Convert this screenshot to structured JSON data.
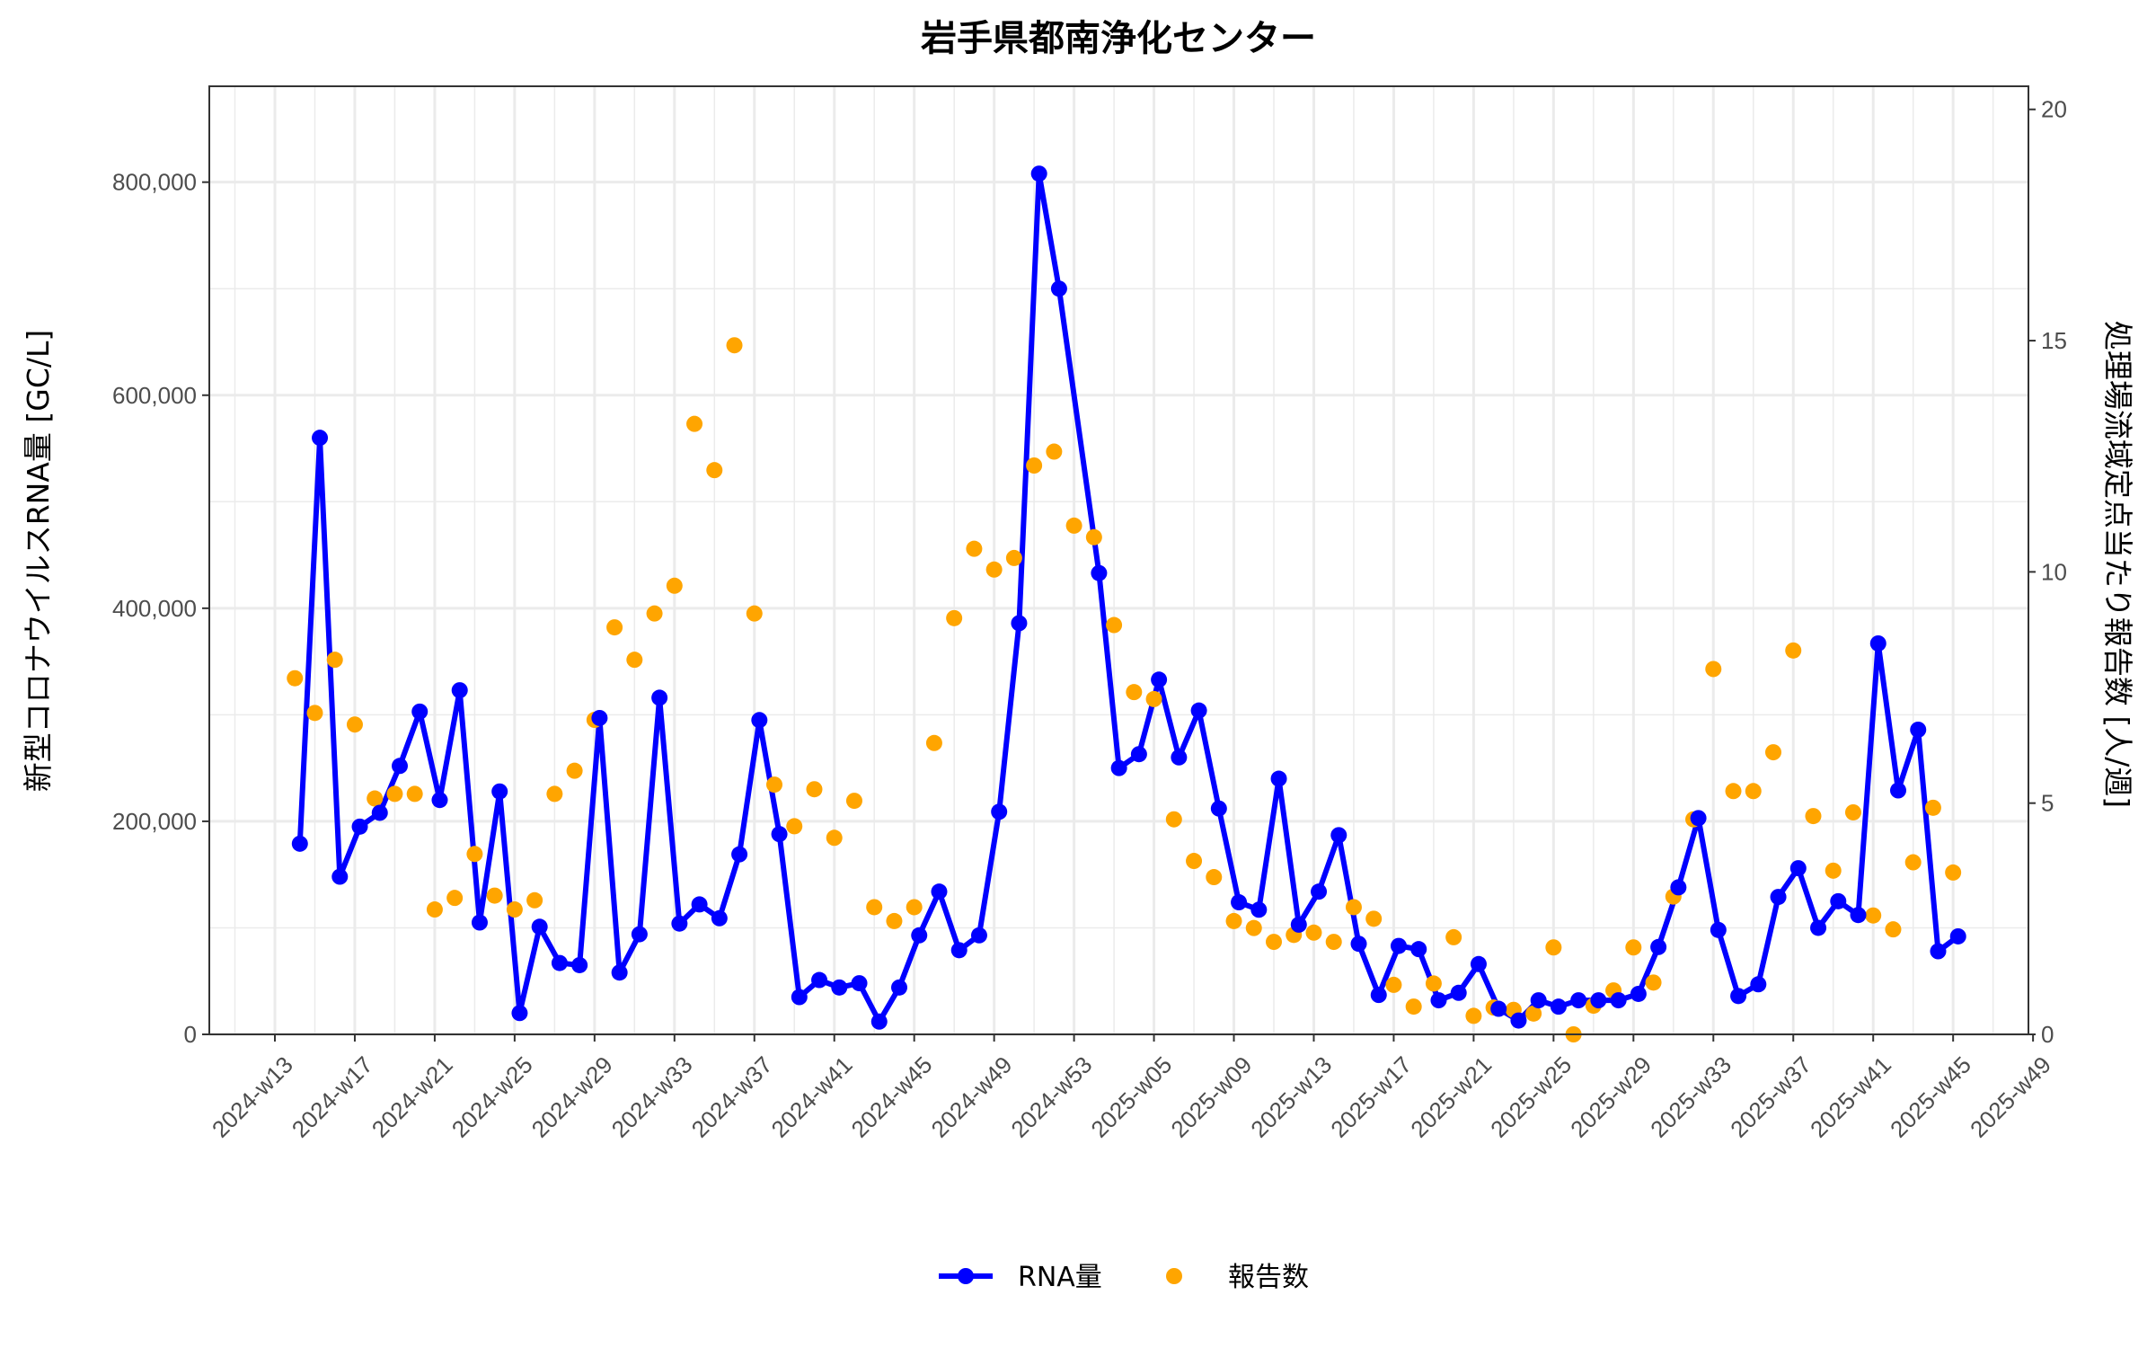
{
  "chart_data": {
    "type": "line",
    "title": "岩手県都南浄化センター",
    "xlabel": "",
    "ylabel_left": "新型コロナウイルスRNA量 [GC/L]",
    "ylabel_right": "処理場流域定点当たり報告数 [人/週]",
    "x_ticks": [
      "2024-w13",
      "2024-w17",
      "2024-w21",
      "2024-w25",
      "2024-w29",
      "2024-w33",
      "2024-w37",
      "2024-w41",
      "2024-w45",
      "2024-w49",
      "2024-w53",
      "2025-w05",
      "2025-w09",
      "2025-w13",
      "2025-w17",
      "2025-w21",
      "2025-w25",
      "2025-w29",
      "2025-w33",
      "2025-w37",
      "2025-w41",
      "2025-w45",
      "2025-w49"
    ],
    "y_left_ticks": [
      {
        "v": 0,
        "label": "0"
      },
      {
        "v": 200000,
        "label": "200,000"
      },
      {
        "v": 400000,
        "label": "400,000"
      },
      {
        "v": 600000,
        "label": "600,000"
      },
      {
        "v": 800000,
        "label": "800,000"
      }
    ],
    "y_right_ticks": [
      {
        "v": 0,
        "label": "0"
      },
      {
        "v": 5,
        "label": "5"
      },
      {
        "v": 10,
        "label": "10"
      },
      {
        "v": 15,
        "label": "15"
      },
      {
        "v": 20,
        "label": "20"
      }
    ],
    "ylim_left": [
      0,
      890000
    ],
    "ylim_right": [
      0,
      20.5
    ],
    "grid": true,
    "legend_position": "bottom",
    "series": [
      {
        "name": "RNA量",
        "type": "line+points",
        "axis": "left",
        "color": "#0000FF",
        "points": [
          [
            "2024-w14",
            179000
          ],
          [
            "2024-w15",
            560000
          ],
          [
            "2024-w16",
            148000
          ],
          [
            "2024-w17",
            195000
          ],
          [
            "2024-w18",
            208000
          ],
          [
            "2024-w19",
            252000
          ],
          [
            "2024-w20",
            303000
          ],
          [
            "2024-w21",
            220000
          ],
          [
            "2024-w22",
            323000
          ],
          [
            "2024-w23",
            105000
          ],
          [
            "2024-w24",
            228000
          ],
          [
            "2024-w25",
            20000
          ],
          [
            "2024-w26",
            101000
          ],
          [
            "2024-w27",
            67000
          ],
          [
            "2024-w28",
            65000
          ],
          [
            "2024-w29",
            297000
          ],
          [
            "2024-w30",
            58000
          ],
          [
            "2024-w31",
            94000
          ],
          [
            "2024-w32",
            316000
          ],
          [
            "2024-w33",
            104000
          ],
          [
            "2024-w34",
            122000
          ],
          [
            "2024-w35",
            109000
          ],
          [
            "2024-w36",
            169000
          ],
          [
            "2024-w37",
            295000
          ],
          [
            "2024-w38",
            188000
          ],
          [
            "2024-w39",
            35000
          ],
          [
            "2024-w40",
            51000
          ],
          [
            "2024-w41",
            44000
          ],
          [
            "2024-w42",
            48000
          ],
          [
            "2024-w43",
            12000
          ],
          [
            "2024-w44",
            44000
          ],
          [
            "2024-w45",
            93000
          ],
          [
            "2024-w46",
            134000
          ],
          [
            "2024-w47",
            79000
          ],
          [
            "2024-w48",
            93000
          ],
          [
            "2024-w49",
            209000
          ],
          [
            "2024-w50",
            386000
          ],
          [
            "2024-w51",
            808000
          ],
          [
            "2024-w52",
            700000
          ],
          [
            "2025-w02",
            433000
          ],
          [
            "2025-w03",
            250000
          ],
          [
            "2025-w04",
            263000
          ],
          [
            "2025-w05",
            333000
          ],
          [
            "2025-w06",
            260000
          ],
          [
            "2025-w07",
            304000
          ],
          [
            "2025-w08",
            212000
          ],
          [
            "2025-w09",
            124000
          ],
          [
            "2025-w10",
            117000
          ],
          [
            "2025-w11",
            240000
          ],
          [
            "2025-w12",
            103000
          ],
          [
            "2025-w13",
            134000
          ],
          [
            "2025-w14",
            187000
          ],
          [
            "2025-w15",
            85000
          ],
          [
            "2025-w16",
            37000
          ],
          [
            "2025-w17",
            83000
          ],
          [
            "2025-w18",
            80000
          ],
          [
            "2025-w19",
            32000
          ],
          [
            "2025-w20",
            39000
          ],
          [
            "2025-w21",
            66000
          ],
          [
            "2025-w22",
            24000
          ],
          [
            "2025-w23",
            13000
          ],
          [
            "2025-w24",
            32000
          ],
          [
            "2025-w25",
            26000
          ],
          [
            "2025-w26",
            32000
          ],
          [
            "2025-w27",
            32000
          ],
          [
            "2025-w28",
            32000
          ],
          [
            "2025-w29",
            38000
          ],
          [
            "2025-w30",
            82000
          ],
          [
            "2025-w31",
            138000
          ],
          [
            "2025-w32",
            203000
          ],
          [
            "2025-w33",
            98000
          ],
          [
            "2025-w34",
            36000
          ],
          [
            "2025-w35",
            47000
          ],
          [
            "2025-w36",
            129000
          ],
          [
            "2025-w37",
            156000
          ],
          [
            "2025-w38",
            100000
          ],
          [
            "2025-w39",
            125000
          ],
          [
            "2025-w40",
            112000
          ],
          [
            "2025-w41",
            367000
          ],
          [
            "2025-w42",
            229000
          ],
          [
            "2025-w43",
            286000
          ],
          [
            "2025-w44",
            78000
          ],
          [
            "2025-w45",
            92000
          ]
        ]
      },
      {
        "name": "報告数",
        "type": "scatter",
        "axis": "right",
        "color": "#FFA500",
        "points": [
          [
            "2024-w14",
            7.7
          ],
          [
            "2024-w15",
            6.95
          ],
          [
            "2024-w16",
            8.1
          ],
          [
            "2024-w17",
            6.7
          ],
          [
            "2024-w18",
            5.1
          ],
          [
            "2024-w19",
            5.2
          ],
          [
            "2024-w20",
            5.2
          ],
          [
            "2024-w21",
            2.7
          ],
          [
            "2024-w22",
            2.95
          ],
          [
            "2024-w23",
            3.9
          ],
          [
            "2024-w24",
            3.0
          ],
          [
            "2024-w25",
            2.7
          ],
          [
            "2024-w26",
            2.9
          ],
          [
            "2024-w27",
            5.2
          ],
          [
            "2024-w28",
            5.7
          ],
          [
            "2024-w29",
            6.8
          ],
          [
            "2024-w30",
            8.8
          ],
          [
            "2024-w31",
            8.1
          ],
          [
            "2024-w32",
            9.1
          ],
          [
            "2024-w33",
            9.7
          ],
          [
            "2024-w34",
            13.2
          ],
          [
            "2024-w35",
            12.2
          ],
          [
            "2024-w36",
            14.9
          ],
          [
            "2024-w37",
            9.1
          ],
          [
            "2024-w38",
            5.4
          ],
          [
            "2024-w39",
            4.5
          ],
          [
            "2024-w40",
            5.3
          ],
          [
            "2024-w41",
            4.25
          ],
          [
            "2024-w42",
            5.05
          ],
          [
            "2024-w43",
            2.75
          ],
          [
            "2024-w44",
            2.45
          ],
          [
            "2024-w45",
            2.75
          ],
          [
            "2024-w46",
            6.3
          ],
          [
            "2024-w47",
            9.0
          ],
          [
            "2024-w48",
            10.5
          ],
          [
            "2024-w49",
            10.05
          ],
          [
            "2024-w50",
            10.3
          ],
          [
            "2024-w51",
            12.3
          ],
          [
            "2024-w52",
            12.6
          ],
          [
            "2024-w53",
            11.0
          ],
          [
            "2025-w02",
            10.75
          ],
          [
            "2025-w03",
            8.85
          ],
          [
            "2025-w04",
            7.4
          ],
          [
            "2025-w05",
            7.25
          ],
          [
            "2025-w06",
            4.65
          ],
          [
            "2025-w07",
            3.75
          ],
          [
            "2025-w08",
            3.4
          ],
          [
            "2025-w09",
            2.45
          ],
          [
            "2025-w10",
            2.3
          ],
          [
            "2025-w11",
            2.0
          ],
          [
            "2025-w12",
            2.15
          ],
          [
            "2025-w13",
            2.2
          ],
          [
            "2025-w14",
            2.0
          ],
          [
            "2025-w15",
            2.75
          ],
          [
            "2025-w16",
            2.5
          ],
          [
            "2025-w17",
            1.07
          ],
          [
            "2025-w18",
            0.6
          ],
          [
            "2025-w19",
            1.1
          ],
          [
            "2025-w20",
            2.1
          ],
          [
            "2025-w21",
            0.4
          ],
          [
            "2025-w22",
            0.58
          ],
          [
            "2025-w23",
            0.53
          ],
          [
            "2025-w24",
            0.45
          ],
          [
            "2025-w25",
            1.88
          ],
          [
            "2025-w26",
            0.0
          ],
          [
            "2025-w27",
            0.62
          ],
          [
            "2025-w28",
            0.95
          ],
          [
            "2025-w29",
            1.88
          ],
          [
            "2025-w30",
            1.12
          ],
          [
            "2025-w31",
            2.98
          ],
          [
            "2025-w32",
            4.65
          ],
          [
            "2025-w33",
            7.9
          ],
          [
            "2025-w34",
            5.26
          ],
          [
            "2025-w35",
            5.26
          ],
          [
            "2025-w36",
            6.1
          ],
          [
            "2025-w37",
            8.3
          ],
          [
            "2025-w38",
            4.72
          ],
          [
            "2025-w39",
            3.54
          ],
          [
            "2025-w40",
            4.8
          ],
          [
            "2025-w41",
            2.57
          ],
          [
            "2025-w42",
            2.27
          ],
          [
            "2025-w43",
            3.72
          ],
          [
            "2025-w44",
            4.9
          ],
          [
            "2025-w45",
            3.5
          ]
        ]
      }
    ]
  }
}
